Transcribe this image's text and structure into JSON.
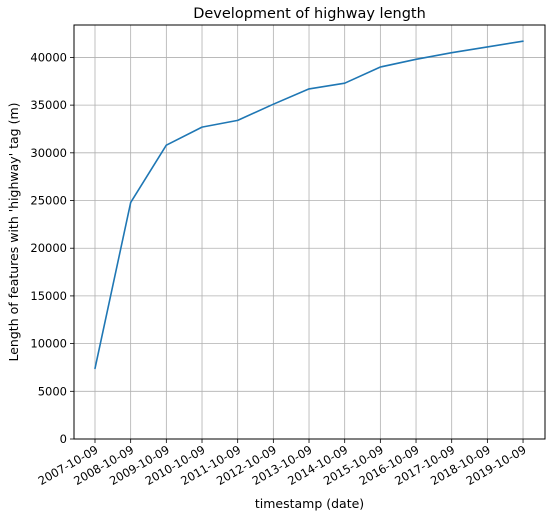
{
  "chart_data": {
    "type": "line",
    "title": "Development of highway length",
    "xlabel": "timestamp (date)",
    "ylabel": "Length of features with 'highway' tag (m)",
    "x": [
      "2007-10-09",
      "2008-10-09",
      "2009-10-09",
      "2010-10-09",
      "2011-10-09",
      "2012-10-09",
      "2013-10-09",
      "2014-10-09",
      "2015-10-09",
      "2016-10-09",
      "2017-10-09",
      "2018-10-09",
      "2019-10-09"
    ],
    "series": [
      {
        "values": [
          7400,
          24800,
          30800,
          32700,
          33400,
          35100,
          36700,
          37300,
          39000,
          39800,
          40500,
          41100,
          41700
        ]
      }
    ],
    "ylim": [
      0,
      43400
    ],
    "yticks": [
      0,
      5000,
      10000,
      15000,
      20000,
      25000,
      30000,
      35000,
      40000
    ],
    "grid": true,
    "line_color": "#1f77b4"
  }
}
